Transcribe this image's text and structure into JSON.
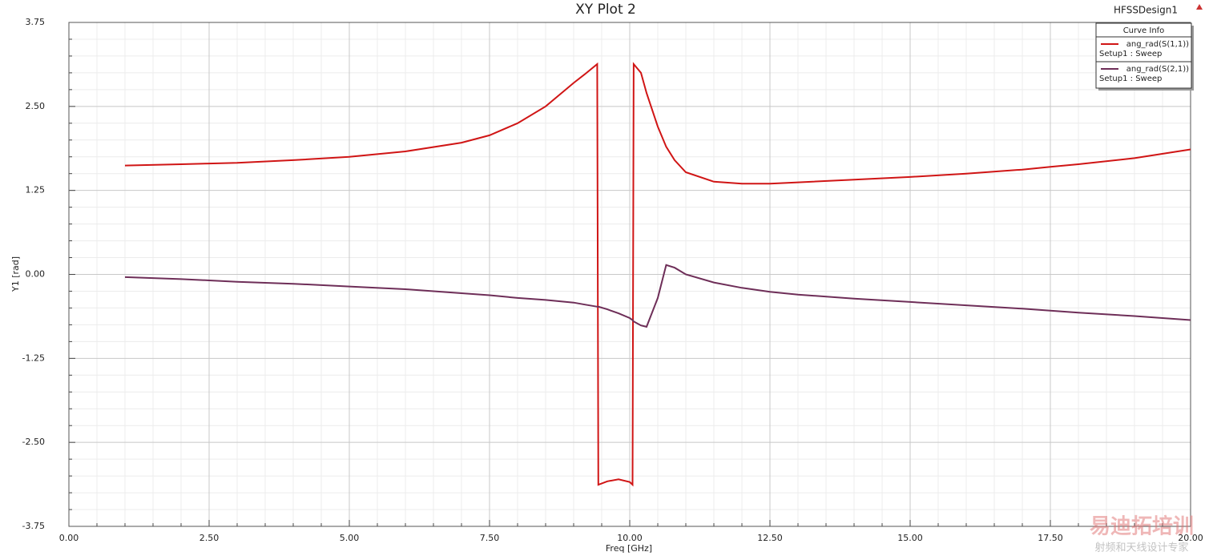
{
  "chart_data": {
    "type": "line",
    "title": "XY Plot 2",
    "design_name": "HFSSDesign1",
    "x_label": "Freq [GHz]",
    "y_label": "Y1 [rad]",
    "legend_title": "Curve Info",
    "legend": "top-right",
    "grid": true,
    "watermark": {
      "title": "易迪拓培训",
      "subtitle": "射频和天线设计专家"
    },
    "x": [
      1,
      2,
      2.5,
      3,
      4,
      5,
      6,
      7,
      7.5,
      8,
      8.5,
      9,
      9.2,
      9.42,
      9.44,
      9.6,
      9.8,
      10.0,
      10.05,
      10.07,
      10.2,
      10.3,
      10.5,
      10.65,
      10.8,
      11,
      11.5,
      12,
      12.5,
      13,
      14,
      15,
      16,
      17,
      17.5,
      18,
      19,
      20
    ],
    "series": [
      {
        "name": "ang_rad(S(1,1))",
        "setup": "Setup1 : Sweep",
        "color": "#d01515",
        "values": [
          1.62,
          1.64,
          1.65,
          1.66,
          1.7,
          1.75,
          1.83,
          1.96,
          2.07,
          2.25,
          2.5,
          2.85,
          2.98,
          3.13,
          -3.13,
          -3.08,
          -3.05,
          -3.09,
          -3.13,
          3.13,
          3.0,
          2.7,
          2.2,
          1.9,
          1.7,
          1.52,
          1.38,
          1.35,
          1.35,
          1.37,
          1.41,
          1.45,
          1.5,
          1.56,
          1.6,
          1.64,
          1.73,
          1.86
        ]
      },
      {
        "name": "ang_rad(S(2,1))",
        "setup": "Setup1 : Sweep",
        "color": "#6e2e58",
        "values": [
          -0.04,
          -0.07,
          -0.09,
          -0.11,
          -0.14,
          -0.18,
          -0.22,
          -0.28,
          -0.31,
          -0.35,
          -0.38,
          -0.42,
          -0.45,
          -0.48,
          -0.48,
          -0.52,
          -0.58,
          -0.65,
          -0.68,
          -0.7,
          -0.76,
          -0.78,
          -0.35,
          0.14,
          0.1,
          0.0,
          -0.12,
          -0.2,
          -0.26,
          -0.3,
          -0.36,
          -0.41,
          -0.46,
          -0.51,
          -0.54,
          -0.57,
          -0.62,
          -0.68
        ]
      }
    ],
    "xlim": [
      0,
      20
    ],
    "xticks": [
      {
        "value": 0,
        "label": "0.00"
      },
      {
        "value": 2.5,
        "label": "2.50"
      },
      {
        "value": 5,
        "label": "5.00"
      },
      {
        "value": 7.5,
        "label": "7.50"
      },
      {
        "value": 10,
        "label": "10.00"
      },
      {
        "value": 12.5,
        "label": "12.50"
      },
      {
        "value": 15,
        "label": "15.00"
      },
      {
        "value": 17.5,
        "label": "17.50"
      },
      {
        "value": 20,
        "label": "20.00"
      }
    ],
    "ylim": [
      -3.75,
      3.75
    ],
    "yticks": [
      {
        "value": -3.75,
        "label": "-3.75"
      },
      {
        "value": -2.5,
        "label": "-2.50"
      },
      {
        "value": -1.25,
        "label": "-1.25"
      },
      {
        "value": 0,
        "label": "0.00"
      },
      {
        "value": 1.25,
        "label": "1.25"
      },
      {
        "value": 2.5,
        "label": "2.50"
      },
      {
        "value": 3.75,
        "label": "3.75"
      }
    ]
  }
}
